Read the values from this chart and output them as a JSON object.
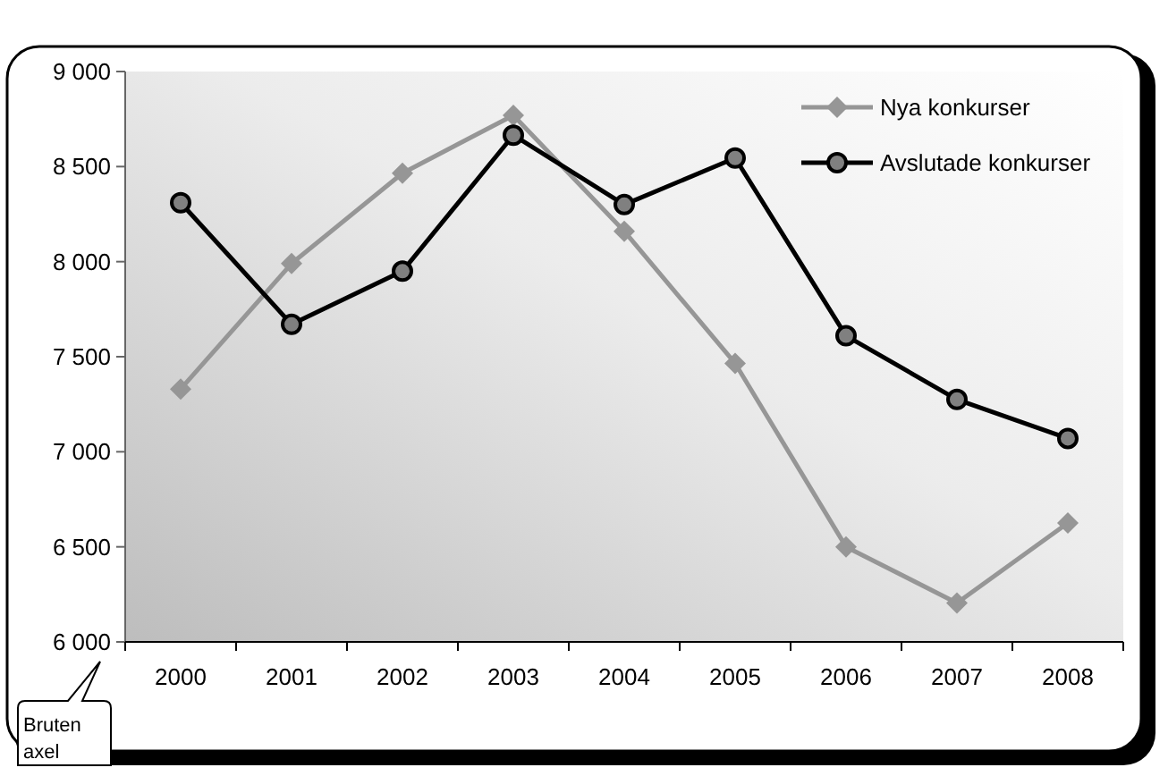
{
  "chart_data": {
    "type": "line",
    "categories": [
      "2000",
      "2001",
      "2002",
      "2003",
      "2004",
      "2005",
      "2006",
      "2007",
      "2008"
    ],
    "series": [
      {
        "name": "Nya konkurser",
        "color": "#969696",
        "marker": "diamond",
        "values": [
          7330,
          7990,
          8465,
          8770,
          8160,
          7465,
          6500,
          6205,
          6625
        ]
      },
      {
        "name": "Avslutade konkurser",
        "color": "#000000",
        "marker": "circle",
        "values": [
          8310,
          7670,
          7950,
          8665,
          8300,
          8545,
          7610,
          7275,
          7070
        ]
      }
    ],
    "ylim": [
      6000,
      9000
    ],
    "yticks": [
      {
        "value": 6000,
        "label": "6 000"
      },
      {
        "value": 6500,
        "label": "6 500"
      },
      {
        "value": 7000,
        "label": "7 000"
      },
      {
        "value": 7500,
        "label": "7 500"
      },
      {
        "value": 8000,
        "label": "8 000"
      },
      {
        "value": 8500,
        "label": "8 500"
      },
      {
        "value": 9000,
        "label": "9 000"
      }
    ],
    "grid": false,
    "legend": "top right",
    "annotations": [
      "Bruten axel"
    ]
  }
}
